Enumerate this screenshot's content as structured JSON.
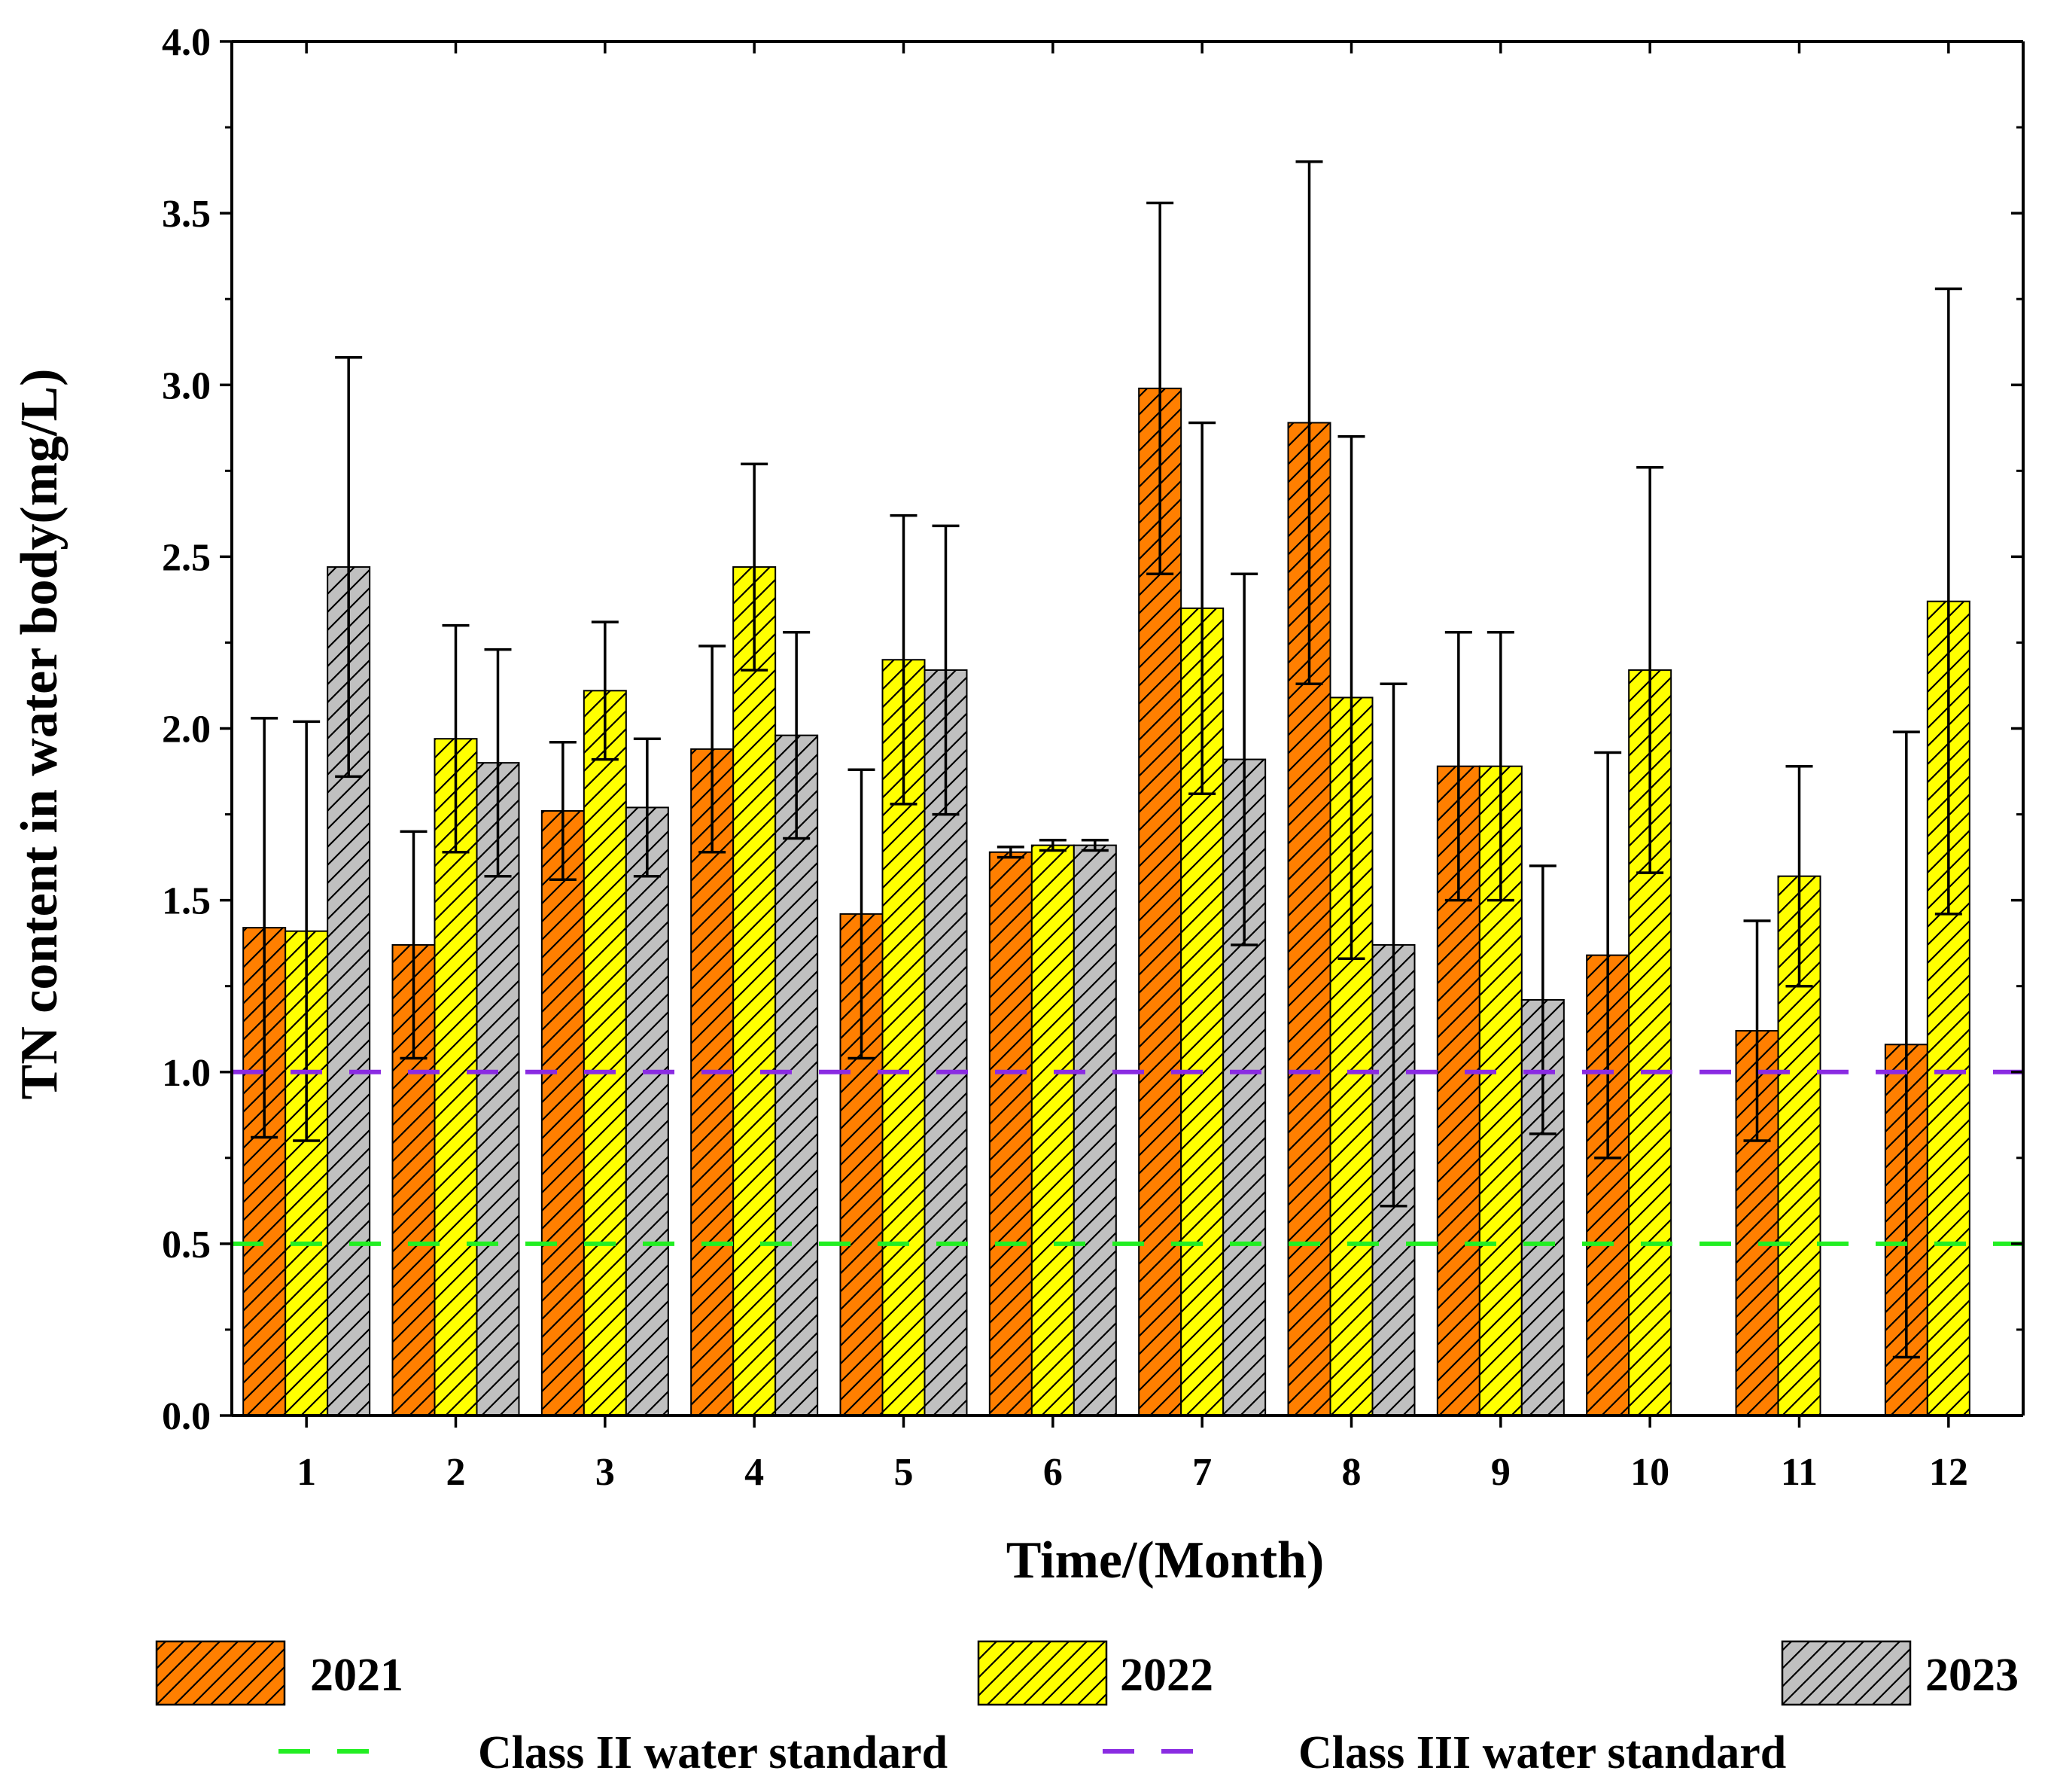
{
  "chart_data": {
    "type": "bar",
    "title": "",
    "xlabel": "Time/(Month)",
    "ylabel": "TN content in water body(mg/L)",
    "ylim": [
      0,
      4.0
    ],
    "yticks": [
      "0.0",
      "0.5",
      "1.0",
      "1.5",
      "2.0",
      "2.5",
      "3.0",
      "3.5",
      "4.0"
    ],
    "categories": [
      "1",
      "2",
      "3",
      "4",
      "5",
      "6",
      "7",
      "8",
      "9",
      "10",
      "11",
      "12"
    ],
    "series": [
      {
        "name": "2021",
        "color": "#ff7f00",
        "values": [
          1.42,
          1.37,
          1.76,
          1.94,
          1.46,
          1.64,
          2.99,
          2.89,
          1.89,
          1.34,
          1.12,
          1.08
        ],
        "errors": [
          0.61,
          0.33,
          0.2,
          0.3,
          0.42,
          0.015,
          0.54,
          0.76,
          0.39,
          0.59,
          0.32,
          0.91
        ]
      },
      {
        "name": "2022",
        "color": "#ffff00",
        "values": [
          1.41,
          1.97,
          2.11,
          2.47,
          2.2,
          1.66,
          2.35,
          2.09,
          1.89,
          2.17,
          1.57,
          2.37
        ],
        "errors": [
          0.61,
          0.33,
          0.2,
          0.3,
          0.42,
          0.015,
          0.54,
          0.76,
          0.39,
          0.59,
          0.32,
          0.91
        ]
      },
      {
        "name": "2023",
        "color": "#c0c0c0",
        "values": [
          2.47,
          1.9,
          1.77,
          1.98,
          2.17,
          1.66,
          1.91,
          1.37,
          1.21,
          null,
          null,
          null
        ],
        "errors": [
          0.61,
          0.33,
          0.2,
          0.3,
          0.42,
          0.015,
          0.54,
          0.76,
          0.39,
          null,
          null,
          null
        ]
      }
    ],
    "reference_lines": [
      {
        "name": "Class II water standard",
        "value": 0.5,
        "color": "#22ee22"
      },
      {
        "name": "Class III water standard",
        "value": 1.0,
        "color": "#8a2be2"
      }
    ],
    "legend_position": "bottom"
  }
}
